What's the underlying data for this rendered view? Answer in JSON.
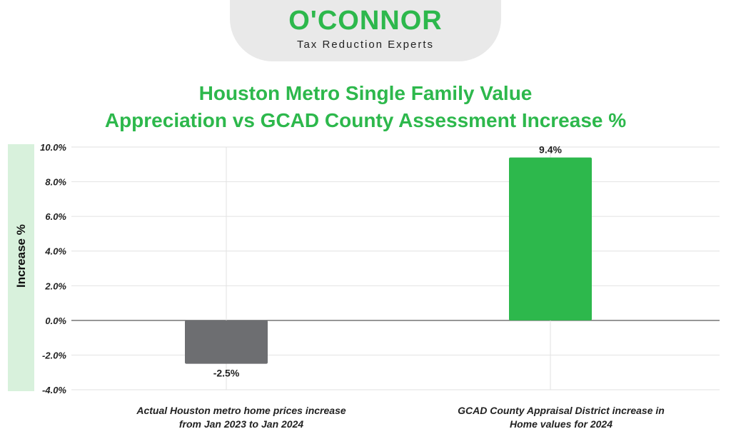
{
  "logo": {
    "name": "O'CONNOR",
    "tagline": "Tax Reduction Experts"
  },
  "chart_data": {
    "type": "bar",
    "title_lines": [
      "Houston Metro Single Family Value",
      "Appreciation vs GCAD County Assessment Increase %"
    ],
    "ylabel": "Increase %",
    "xlabel": "",
    "ylim": [
      -4.0,
      10.0
    ],
    "yticks": [
      10.0,
      8.0,
      6.0,
      4.0,
      2.0,
      0.0,
      -2.0,
      -4.0
    ],
    "ytick_labels": [
      "10.0%",
      "8.0%",
      "6.0%",
      "4.0%",
      "2.0%",
      "0.0%",
      "-2.0%",
      "-4.0%"
    ],
    "categories": [
      [
        "Actual Houston metro home prices increase",
        "from Jan 2023 to Jan 2024"
      ],
      [
        "GCAD County Appraisal District increase in",
        "Home values for 2024"
      ]
    ],
    "values": [
      -2.5,
      9.4
    ],
    "value_labels": [
      "-2.5%",
      "9.4%"
    ],
    "colors": [
      "#6d6e71",
      "#2db84c"
    ],
    "grid": true,
    "legend": "none"
  }
}
